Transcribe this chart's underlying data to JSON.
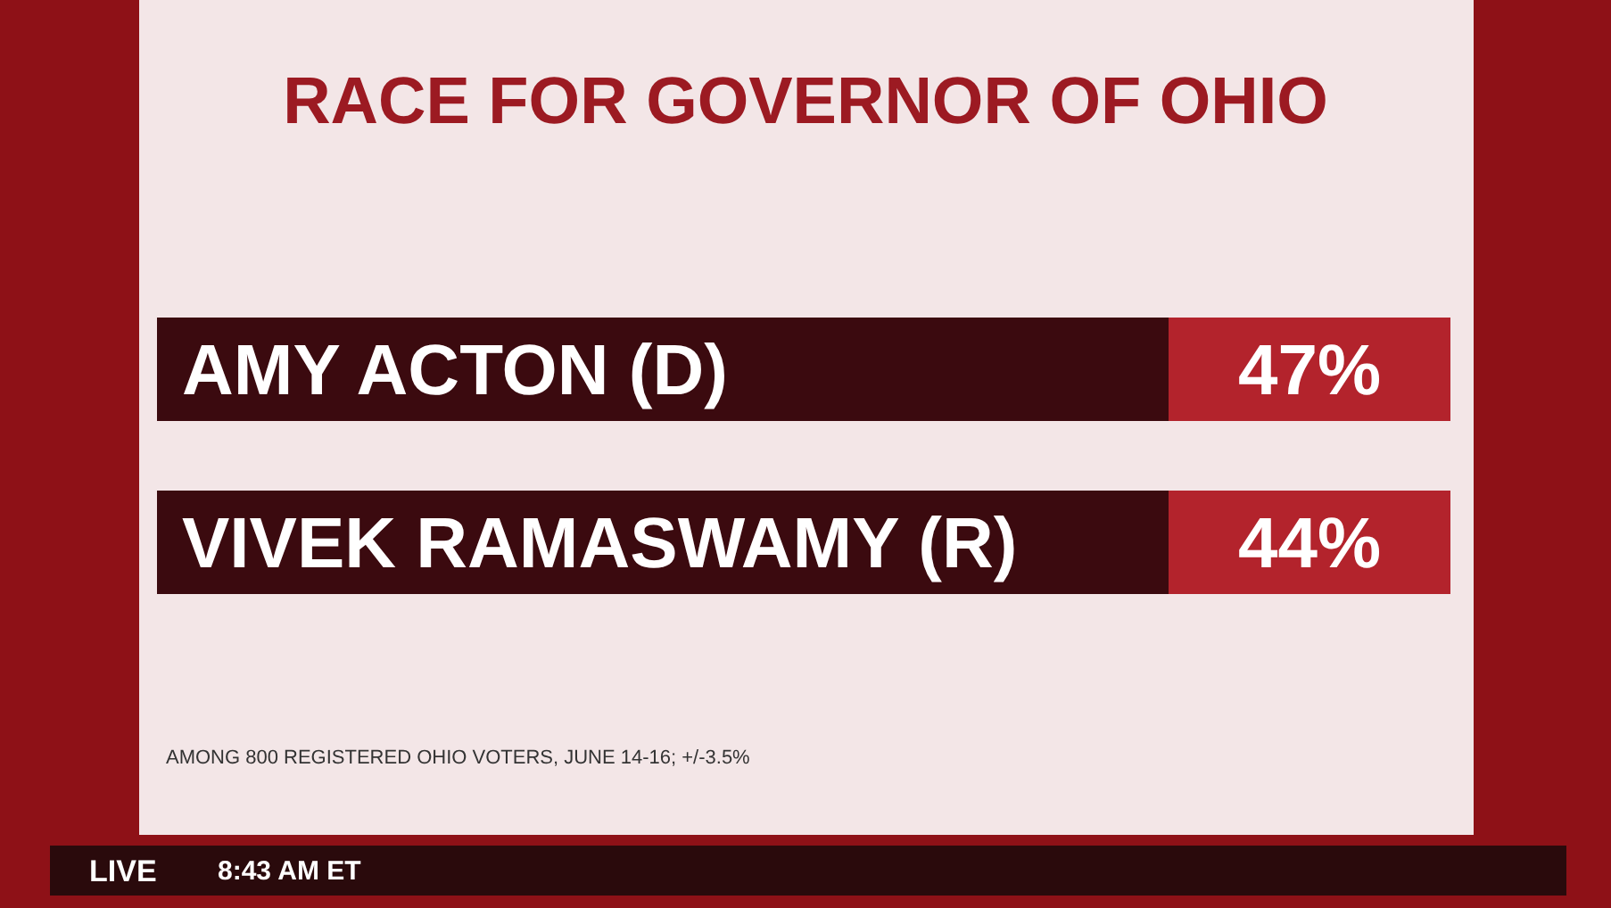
{
  "chart_data": {
    "type": "other",
    "title": "RACE FOR GOVERNOR OF OHIO",
    "categories": [
      "AMY ACTON (D)",
      "VIVEK RAMASWAMY (R)"
    ],
    "values": [
      47,
      44
    ],
    "value_labels": [
      "47%",
      "44%"
    ],
    "color": "#b3232c",
    "annotations": [
      "AMONG 800 REGISTERED OHIO VOTERS, JUNE 14-16; +/-3.5%",
      "LIVE",
      "8:43 AM ET"
    ]
  }
}
